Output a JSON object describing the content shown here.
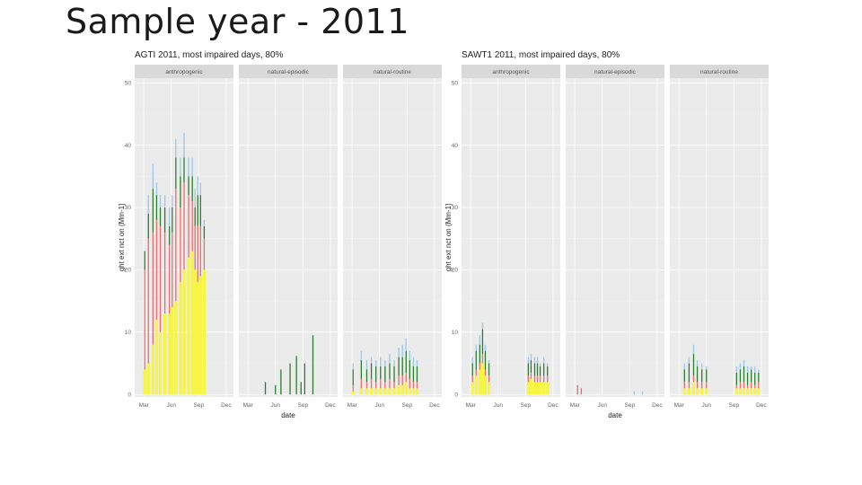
{
  "slide": {
    "title": "Sample year - 2011"
  },
  "chart_data": [
    {
      "type": "bar",
      "title": "AGTI 2011, most impaired days, 80%",
      "xlabel": "date",
      "ylabel": "ght ext nct on (Mm-1]",
      "ylim": [
        0,
        50
      ],
      "yticks": [
        0,
        10,
        20,
        30,
        40,
        50
      ],
      "x_ticks": [
        "Mar",
        "Jun",
        "Sep",
        "Dec"
      ],
      "x_tick_months": [
        3,
        6,
        9,
        12
      ],
      "xlim_months": [
        2.0,
        12.8
      ],
      "facets": [
        "anthropogenic",
        "natural-episodic",
        "natural-routine"
      ],
      "grid": true,
      "component_colors": [
        "#f5f542",
        "#ef6a6a",
        "#2e7d32",
        "#9fc5e8"
      ],
      "panels": [
        {
          "name": "anthropogenic",
          "bars": [
            {
              "x": 3.1,
              "v": [
                4,
                16,
                3,
                0
              ]
            },
            {
              "x": 3.5,
              "v": [
                5,
                20,
                4,
                3
              ]
            },
            {
              "x": 4.0,
              "v": [
                8,
                18,
                7,
                4
              ]
            },
            {
              "x": 4.4,
              "v": [
                12,
                16,
                4,
                2
              ]
            },
            {
              "x": 4.8,
              "v": [
                10,
                17,
                3,
                2
              ]
            },
            {
              "x": 5.3,
              "v": [
                13,
                13,
                4,
                2
              ]
            },
            {
              "x": 5.8,
              "v": [
                13,
                11,
                3,
                3
              ]
            },
            {
              "x": 6.1,
              "v": [
                14,
                12,
                4,
                2
              ]
            },
            {
              "x": 6.5,
              "v": [
                15,
                18,
                5,
                3
              ]
            },
            {
              "x": 7.0,
              "v": [
                18,
                12,
                5,
                3
              ]
            },
            {
              "x": 7.4,
              "v": [
                20,
                14,
                4,
                4
              ]
            },
            {
              "x": 7.9,
              "v": [
                22,
                10,
                3,
                3
              ]
            },
            {
              "x": 8.3,
              "v": [
                23,
                8,
                4,
                3
              ]
            },
            {
              "x": 8.6,
              "v": [
                20,
                7,
                3,
                3
              ]
            },
            {
              "x": 8.9,
              "v": [
                18,
                9,
                5,
                3
              ]
            },
            {
              "x": 9.2,
              "v": [
                19,
                8,
                5,
                2
              ]
            },
            {
              "x": 9.6,
              "v": [
                20,
                5,
                2,
                1
              ]
            }
          ]
        },
        {
          "name": "natural-episodic",
          "bars": [
            {
              "x": 4.9,
              "v": [
                0,
                0,
                2,
                0
              ]
            },
            {
              "x": 6.0,
              "v": [
                0,
                0,
                1.5,
                0
              ]
            },
            {
              "x": 6.6,
              "v": [
                0,
                0,
                4,
                0
              ]
            },
            {
              "x": 7.6,
              "v": [
                0,
                0,
                5,
                0
              ]
            },
            {
              "x": 8.3,
              "v": [
                0,
                0,
                6.2,
                0
              ]
            },
            {
              "x": 8.8,
              "v": [
                0,
                0,
                2,
                0
              ]
            },
            {
              "x": 9.2,
              "v": [
                0,
                0,
                5,
                0
              ]
            },
            {
              "x": 10.1,
              "v": [
                0,
                0,
                9.5,
                0
              ]
            }
          ]
        },
        {
          "name": "natural-routine",
          "bars": [
            {
              "x": 3.1,
              "v": [
                0.5,
                1,
                2.5,
                1
              ]
            },
            {
              "x": 4.0,
              "v": [
                1,
                1.5,
                3,
                1.5
              ]
            },
            {
              "x": 4.6,
              "v": [
                1,
                1,
                2,
                1.5
              ]
            },
            {
              "x": 5.1,
              "v": [
                1,
                1.5,
                2.5,
                1
              ]
            },
            {
              "x": 5.6,
              "v": [
                1,
                1,
                2.5,
                1
              ]
            },
            {
              "x": 6.1,
              "v": [
                1,
                1.5,
                2,
                1.5
              ]
            },
            {
              "x": 6.6,
              "v": [
                1,
                1,
                2.5,
                1
              ]
            },
            {
              "x": 7.1,
              "v": [
                1,
                1.5,
                2.5,
                1.5
              ]
            },
            {
              "x": 7.6,
              "v": [
                1,
                1,
                2.5,
                1
              ]
            },
            {
              "x": 8.1,
              "v": [
                1.5,
                1.5,
                3,
                1.5
              ]
            },
            {
              "x": 8.5,
              "v": [
                1.5,
                1.5,
                3,
                2
              ]
            },
            {
              "x": 8.9,
              "v": [
                2,
                1.5,
                3.5,
                2
              ]
            },
            {
              "x": 9.3,
              "v": [
                1,
                1.5,
                3,
                1.5
              ]
            },
            {
              "x": 9.7,
              "v": [
                1,
                1,
                2.5,
                1.5
              ]
            },
            {
              "x": 10.1,
              "v": [
                1,
                1,
                2.5,
                1
              ]
            }
          ]
        }
      ]
    },
    {
      "type": "bar",
      "title": "SAWT1 2011, most impaired days, 80%",
      "xlabel": "date",
      "ylabel": "ght ext nct on (Mm-1]",
      "ylim": [
        0,
        50
      ],
      "yticks": [
        0,
        10,
        20,
        30,
        40,
        50
      ],
      "x_ticks": [
        "Mar",
        "Jun",
        "Sep",
        "Dec"
      ],
      "x_tick_months": [
        3,
        6,
        9,
        12
      ],
      "xlim_months": [
        2.0,
        12.8
      ],
      "facets": [
        "anthropogenic",
        "natural-episodic",
        "natural-routine"
      ],
      "grid": true,
      "component_colors": [
        "#f5f542",
        "#ef6a6a",
        "#2e7d32",
        "#9fc5e8"
      ],
      "panels": [
        {
          "name": "anthropogenic",
          "bars": [
            {
              "x": 3.2,
              "v": [
                2,
                1,
                2,
                1
              ]
            },
            {
              "x": 3.6,
              "v": [
                3,
                1,
                3,
                1
              ]
            },
            {
              "x": 4.0,
              "v": [
                4,
                1,
                3,
                1.5
              ]
            },
            {
              "x": 4.3,
              "v": [
                5,
                1.5,
                4,
                1
              ]
            },
            {
              "x": 4.6,
              "v": [
                3,
                1,
                3,
                1
              ]
            },
            {
              "x": 5.0,
              "v": [
                2,
                1,
                2,
                0.5
              ]
            },
            {
              "x": 9.3,
              "v": [
                2,
                1,
                2,
                1
              ]
            },
            {
              "x": 9.6,
              "v": [
                2.5,
                1,
                2,
                1
              ]
            },
            {
              "x": 10.0,
              "v": [
                2,
                1,
                2,
                1
              ]
            },
            {
              "x": 10.3,
              "v": [
                2,
                1,
                2,
                1
              ]
            },
            {
              "x": 10.6,
              "v": [
                2,
                1,
                1.5,
                0.5
              ]
            },
            {
              "x": 11.0,
              "v": [
                2,
                1,
                2,
                1
              ]
            },
            {
              "x": 11.4,
              "v": [
                2,
                1,
                1.5,
                0.5
              ]
            }
          ]
        },
        {
          "name": "natural-episodic",
          "bars": [
            {
              "x": 3.3,
              "v": [
                0,
                1.5,
                0,
                0
              ]
            },
            {
              "x": 3.7,
              "v": [
                0,
                1.0,
                0,
                0
              ]
            },
            {
              "x": 9.5,
              "v": [
                0,
                0,
                0,
                0.5
              ]
            },
            {
              "x": 10.4,
              "v": [
                0,
                0,
                0,
                0.5
              ]
            }
          ]
        },
        {
          "name": "natural-routine",
          "bars": [
            {
              "x": 3.6,
              "v": [
                1,
                1,
                2,
                1
              ]
            },
            {
              "x": 4.1,
              "v": [
                1,
                1,
                3,
                1
              ]
            },
            {
              "x": 4.6,
              "v": [
                2,
                1,
                3.5,
                1.5
              ]
            },
            {
              "x": 5.0,
              "v": [
                1,
                1,
                2.5,
                1
              ]
            },
            {
              "x": 5.5,
              "v": [
                1,
                1,
                2,
                1
              ]
            },
            {
              "x": 6.0,
              "v": [
                1,
                1,
                2,
                0.5
              ]
            },
            {
              "x": 9.3,
              "v": [
                1,
                0.5,
                2,
                1
              ]
            },
            {
              "x": 9.7,
              "v": [
                1,
                1,
                2,
                1
              ]
            },
            {
              "x": 10.1,
              "v": [
                1,
                1,
                2.5,
                1
              ]
            },
            {
              "x": 10.5,
              "v": [
                1,
                0.5,
                2,
                1
              ]
            },
            {
              "x": 10.9,
              "v": [
                1,
                1,
                2,
                0.5
              ]
            },
            {
              "x": 11.3,
              "v": [
                1,
                0.5,
                2,
                1
              ]
            },
            {
              "x": 11.7,
              "v": [
                1,
                1,
                1.5,
                0.5
              ]
            }
          ]
        }
      ]
    }
  ]
}
